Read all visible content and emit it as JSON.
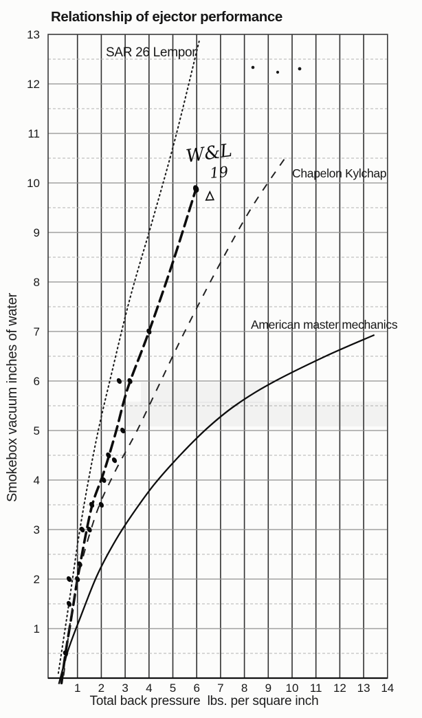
{
  "title": "Relationship of ejector performance",
  "axes": {
    "x_title": "Total back pressure  lbs. per square inch",
    "y_title": "Smokebox vacuum inches of water"
  },
  "labels": {
    "sar": "SAR 26 Lempor",
    "chapelon": "Chapelon Kylchap",
    "amm": "American master mechanics",
    "handwritten_line1": "W&L",
    "handwritten_line2": "19"
  },
  "colors": {
    "ink": "#161616",
    "grid_vertical": "#2f2f2f",
    "grid_major": "#8e8e8e",
    "grid_minor": "#b2b2b2",
    "paper": "#fcfcfb"
  },
  "chart_data": {
    "type": "line",
    "title": "Relationship of ejector performance",
    "xlabel": "Total back pressure  lbs. per square inch",
    "ylabel": "Smokebox vacuum inches of water",
    "xlim": [
      0,
      14
    ],
    "ylim": [
      0,
      13
    ],
    "grid": "on",
    "x_ticks": [
      1,
      2,
      3,
      4,
      5,
      6,
      7,
      8,
      9,
      10,
      11,
      12,
      13,
      14
    ],
    "y_ticks": [
      1,
      2,
      3,
      4,
      5,
      6,
      7,
      8,
      9,
      10,
      11,
      12,
      13
    ],
    "y_grid_step": 0.5,
    "legend_position": "inline-labels",
    "series": [
      {
        "name": "SAR 26 Lempor",
        "style": "dotted",
        "points": [
          [
            0.2,
            0.1
          ],
          [
            0.63,
            1.47
          ],
          [
            1.15,
            3.14
          ],
          [
            1.79,
            4.81
          ],
          [
            2.45,
            6.19
          ],
          [
            3.23,
            7.72
          ],
          [
            4.15,
            9.25
          ],
          [
            5.1,
            10.9
          ],
          [
            6.1,
            12.86
          ]
        ]
      },
      {
        "name": "W&L 19 (hand-annotated test line)",
        "style": "heavy-dashed",
        "points": [
          [
            0.33,
            -0.1
          ],
          [
            0.5,
            0.5
          ],
          [
            0.8,
            1.4
          ],
          [
            1.0,
            2.0
          ],
          [
            1.35,
            2.9
          ],
          [
            1.65,
            3.55
          ],
          [
            2.1,
            4.15
          ],
          [
            2.6,
            4.95
          ],
          [
            2.95,
            5.6
          ],
          [
            3.25,
            6.05
          ],
          [
            4.0,
            7.0
          ],
          [
            5.0,
            8.4
          ],
          [
            5.95,
            9.85
          ]
        ]
      },
      {
        "name": "Chapelon Kylchap",
        "style": "dashed",
        "points": [
          [
            0.42,
            0.05
          ],
          [
            0.9,
            1.75
          ],
          [
            1.7,
            3.2
          ],
          [
            2.5,
            4.1
          ],
          [
            3.5,
            5.0
          ],
          [
            4.45,
            5.95
          ],
          [
            5.45,
            6.95
          ],
          [
            6.9,
            8.3
          ],
          [
            8.3,
            9.5
          ],
          [
            9.7,
            10.5
          ]
        ]
      },
      {
        "name": "American master mechanics",
        "style": "solid",
        "points": [
          [
            0.22,
            -0.12
          ],
          [
            0.6,
            0.55
          ],
          [
            1.1,
            1.2
          ],
          [
            1.8,
            2.05
          ],
          [
            2.5,
            2.7
          ],
          [
            3.15,
            3.2
          ],
          [
            4.2,
            3.9
          ],
          [
            5.3,
            4.5
          ],
          [
            6.45,
            5.05
          ],
          [
            7.6,
            5.5
          ],
          [
            9.1,
            5.95
          ],
          [
            11.4,
            6.5
          ],
          [
            13.45,
            6.93
          ]
        ]
      }
    ],
    "test_points": [
      [
        0.5,
        0.5
      ],
      [
        0.65,
        1.5
      ],
      [
        0.65,
        2.0
      ],
      [
        1.0,
        2.0
      ],
      [
        1.1,
        2.3
      ],
      [
        1.2,
        3.0
      ],
      [
        1.5,
        3.0
      ],
      [
        1.6,
        3.5
      ],
      [
        2.0,
        3.5
      ],
      [
        2.1,
        4.0
      ],
      [
        2.3,
        4.5
      ],
      [
        2.55,
        4.4
      ],
      [
        2.9,
        5.0
      ],
      [
        2.75,
        6.0
      ],
      [
        3.2,
        6.0
      ],
      [
        4.0,
        7.0
      ]
    ],
    "end_point": [
      5.97,
      9.88
    ],
    "triangle_point": [
      6.55,
      9.73
    ]
  }
}
